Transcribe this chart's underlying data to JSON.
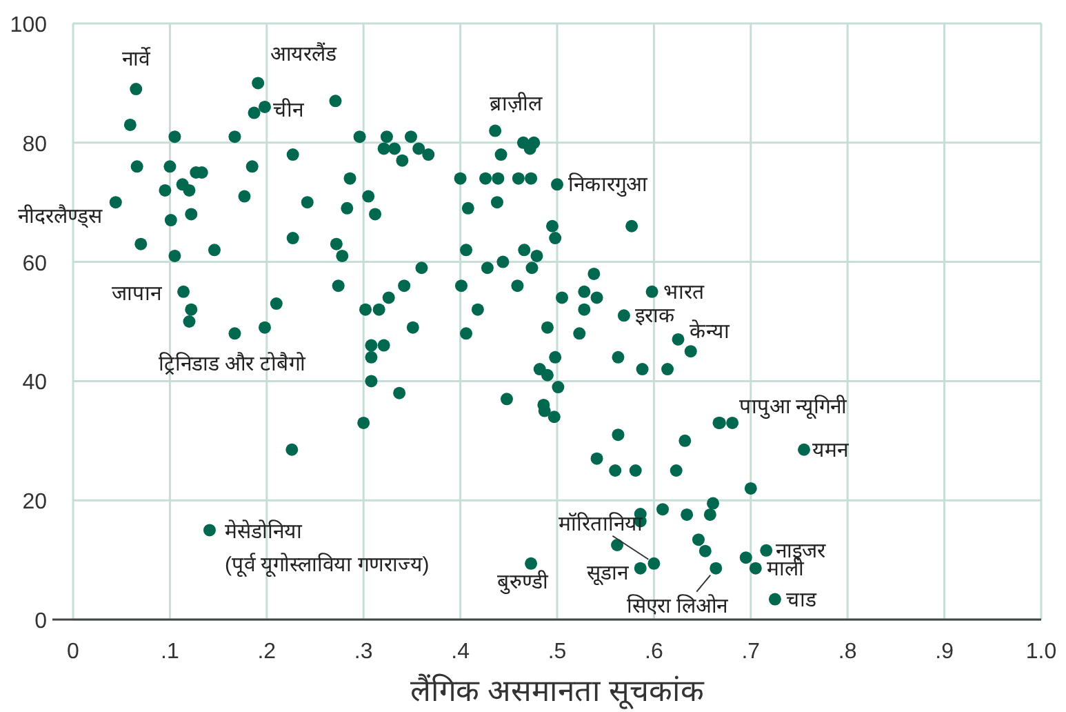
{
  "chart_data": {
    "type": "scatter",
    "xlabel": "लैंगिक असमानता सूचकांक",
    "color": "#00684f",
    "marker": "circle",
    "grid": true,
    "xlim": [
      0,
      1
    ],
    "ylim": [
      0,
      100
    ],
    "xticks": [
      0,
      {
        "value": 0.1,
        "label": ".1"
      },
      {
        "value": 0.2,
        "label": ".2"
      },
      {
        "value": 0.3,
        "label": ".3"
      },
      {
        "value": 0.4,
        "label": ".4"
      },
      {
        "value": 0.5,
        "label": ".5"
      },
      {
        "value": 0.6,
        "label": ".6"
      },
      {
        "value": 0.7,
        "label": ".7"
      },
      {
        "value": 0.8,
        "label": ".8"
      },
      {
        "value": 0.9,
        "label": ".9"
      },
      {
        "value": 1,
        "label": "1.0"
      }
    ],
    "yticks": [
      0,
      20,
      40,
      60,
      80,
      100
    ],
    "x": [
      0.065,
      0.059,
      0.105,
      0.167,
      0.191,
      0.187,
      0.198,
      0.271,
      0.296,
      0.324,
      0.321,
      0.066,
      0.1,
      0.185,
      0.227,
      0.127,
      0.133,
      0.113,
      0.12,
      0.095,
      0.286,
      0.177,
      0.305,
      0.044,
      0.242,
      0.283,
      0.122,
      0.312,
      0.101,
      0.07,
      0.227,
      0.272,
      0.146,
      0.105,
      0.278,
      0.114,
      0.274,
      0.21,
      0.122,
      0.302,
      0.316,
      0.326,
      0.12,
      0.167,
      0.198,
      0.308,
      0.321,
      0.349,
      0.332,
      0.357,
      0.34,
      0.367,
      0.436,
      0.465,
      0.476,
      0.472,
      0.442,
      0.4,
      0.426,
      0.439,
      0.46,
      0.473,
      0.5,
      0.408,
      0.438,
      0.495,
      0.498,
      0.577,
      0.406,
      0.466,
      0.479,
      0.36,
      0.428,
      0.444,
      0.474,
      0.342,
      0.401,
      0.459,
      0.538,
      0.528,
      0.541,
      0.505,
      0.528,
      0.598,
      0.569,
      0.625,
      0.638,
      0.418,
      0.351,
      0.406,
      0.49,
      0.523,
      0.563,
      0.588,
      0.614,
      0.498,
      0.482,
      0.49,
      0.501,
      0.337,
      0.448,
      0.486,
      0.487,
      0.497,
      0.563,
      0.632,
      0.667,
      0.226,
      0.3,
      0.308,
      0.308,
      0.141,
      0.668,
      0.681,
      0.541,
      0.56,
      0.581,
      0.623,
      0.7,
      0.661,
      0.658,
      0.609,
      0.586,
      0.586,
      0.634,
      0.562,
      0.646,
      0.653,
      0.6,
      0.586,
      0.664,
      0.473,
      0.695,
      0.716,
      0.705,
      0.725,
      0.755
    ],
    "values": [
      89,
      83,
      81,
      81,
      90,
      85,
      86,
      87,
      81,
      81,
      79,
      76,
      76,
      76,
      78,
      75,
      75,
      73,
      72,
      72,
      74,
      71,
      71,
      70,
      70,
      69,
      68,
      68,
      67,
      63,
      64,
      63,
      62,
      61,
      61,
      55,
      56,
      53,
      52,
      52,
      52,
      54,
      50,
      48,
      49,
      46,
      46,
      81,
      79,
      79,
      77,
      78,
      82,
      80,
      80,
      79,
      78,
      74,
      74,
      74,
      74,
      74,
      73,
      69,
      70,
      66,
      64,
      66,
      62,
      62,
      61,
      59,
      59,
      60,
      59,
      56,
      56,
      56,
      58,
      55,
      54,
      54,
      52,
      55,
      51,
      47,
      45,
      52,
      49,
      48,
      49,
      48,
      44,
      42,
      42,
      44,
      42,
      41,
      39,
      38,
      37,
      36,
      35,
      34,
      31,
      30,
      33,
      28.5,
      33,
      40,
      44,
      15,
      33,
      33,
      27,
      25,
      25,
      25,
      22,
      19.5,
      17.6,
      18.5,
      17.7,
      16.5,
      17.6,
      12.5,
      13.4,
      11.5,
      9.4,
      8.6,
      8.6,
      9.4,
      10.4,
      11.6,
      8.6,
      3.4,
      28.5
    ],
    "annotations": [
      {
        "text": "नार्वे",
        "x": 0.065,
        "y": 89
      },
      {
        "text": "आयरलैंड",
        "x": 0.191,
        "y": 90
      },
      {
        "text": "चीन",
        "x": 0.198,
        "y": 86
      },
      {
        "text": "नीदरलैण्ड्स",
        "x": 0.044,
        "y": 70
      },
      {
        "text": "जापान",
        "x": 0.114,
        "y": 55
      },
      {
        "text": "ट्रिनिडाड और टोबैगो",
        "x": 0.167,
        "y": 48
      },
      {
        "text": "मेसेडोनिया\n(पूर्व यूगोस्लाविया गणराज्य)",
        "x": 0.141,
        "y": 15
      },
      {
        "text": "ब्राज़ील",
        "x": 0.436,
        "y": 82
      },
      {
        "text": "निकारगुआ",
        "x": 0.5,
        "y": 73
      },
      {
        "text": "भारत",
        "x": 0.598,
        "y": 55
      },
      {
        "text": "इराक",
        "x": 0.569,
        "y": 51
      },
      {
        "text": "केन्या",
        "x": 0.625,
        "y": 47
      },
      {
        "text": "पापुआ न्यूगिनी",
        "x": 0.681,
        "y": 33
      },
      {
        "text": "यमन",
        "x": 0.755,
        "y": 28.5
      },
      {
        "text": "मॉरितानिया",
        "x": 0.6,
        "y": 9.4
      },
      {
        "text": "सूडान",
        "x": 0.586,
        "y": 8.6
      },
      {
        "text": "सिएरा लिओन",
        "x": 0.664,
        "y": 8.6
      },
      {
        "text": "बुरुण्डी",
        "x": 0.473,
        "y": 9.4
      },
      {
        "text": "नाइजर",
        "x": 0.716,
        "y": 11.6
      },
      {
        "text": "माली",
        "x": 0.705,
        "y": 8.6
      },
      {
        "text": "चाड",
        "x": 0.725,
        "y": 3.4
      }
    ]
  }
}
